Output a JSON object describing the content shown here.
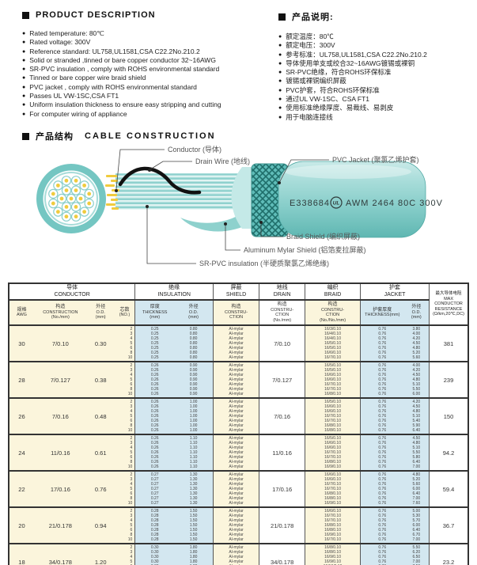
{
  "desc_en": {
    "title": "PRODUCT  DESCRIPTION",
    "items": [
      "Rated temperature: 80℃",
      "Rated voltage: 300V",
      "Reference standard: UL758,UL1581,CSA C22.2No.210.2",
      "Solid or stranded ,tinned or bare copper conductor 32~16AWG",
      "SR-PVC insulation , comply with ROHS environmental standard",
      "Tinned or bare copper wire braid shield",
      "PVC jacket , comply with ROHS environmental standard",
      "Passes UL VW-1SC,CSA FT1",
      "Uniform insulation thickness to ensure easy stripping and cutting",
      "For computer wiring of appliance"
    ]
  },
  "desc_cn": {
    "title": "产品说明:",
    "items": [
      "额定温度：80℃",
      "额定电压：300V",
      "参考标准：UL758,UL1581,CSA C22.2No.210.2",
      "导体使用单支或绞合32~16AWG镀锡或裸铜",
      "SR-PVC绝缘，符合ROHS环保标准",
      "镀锡或裸铜编织屏蔽",
      "PVC护套，符合ROHS环保标准",
      "通过UL VW-1SC、CSA FT1",
      "使用标准绝缘厚度、易裁线、易剥皮",
      "用于电脑连接线"
    ]
  },
  "construction": {
    "title_cn": "产品结构",
    "title_en": "CABLE  CONSTRUCTION",
    "labels": {
      "conductor": "Conductor (导体)",
      "drain": "Drain Wire (地线)",
      "jacket": "PVC Jacket (聚氯乙烯护套)",
      "braid": "Braid Shield (编织屏蔽)",
      "mylar": "Aluminum Mylar Shield (铝箔麦拉屏蔽)",
      "insulation": "SR-PVC insulation (半硬质聚氯乙烯绝缘)"
    },
    "print": {
      "cert": "E338684",
      "ul": "UL",
      "spec": "AWM 2464 80C 300V"
    }
  },
  "colors": {
    "jacket_teal": "#7FCAC6",
    "braid_dark": "#1F6E6A",
    "conductor_yellow": "#F0CB3E",
    "table_cream": "#FBF5DC",
    "table_blue": "#D3E7F0"
  },
  "table": {
    "groups": [
      {
        "cn": "导体",
        "en": "CONDUCTOR",
        "span": 4
      },
      {
        "cn": "绝缘",
        "en": "INSULATION",
        "span": 2
      },
      {
        "cn": "屏蔽",
        "en": "SHIELD",
        "span": 1
      },
      {
        "cn": "地线",
        "en": "DRAIN",
        "span": 1
      },
      {
        "cn": "编织",
        "en": "BRAID",
        "span": 1
      },
      {
        "cn": "护套",
        "en": "JACKET",
        "span": 2
      }
    ],
    "subheaders": [
      [
        "规格",
        "AWG"
      ],
      [
        "构造",
        "CONSTRUCTION",
        "(No./mm)"
      ],
      [
        "外径",
        "O.D.",
        "(mm)"
      ],
      [
        "芯数",
        "(NO.)"
      ],
      [
        "厚度",
        "THICKNESS",
        "(mm)"
      ],
      [
        "外径",
        "O.D.",
        "(mm)"
      ],
      [
        "构造",
        "CONSTRU-",
        "CTION"
      ],
      [
        "构造",
        "CONSTRU-",
        "CTION",
        "(No./mm)"
      ],
      [
        "构造",
        "CONSTRU-",
        "CTION",
        "(No./No./mm)"
      ],
      [
        "护套厚度",
        "THICKNESS(mm)"
      ],
      [
        "外径",
        "O.D.",
        "(mm)"
      ]
    ],
    "resistance_header": [
      "最大导体电阻",
      "MAX CONDUCTOR",
      "RESISTANCE",
      "(Ω/km,20℃,DC)"
    ],
    "rows": [
      {
        "awg": "30",
        "construction": "7/0.10",
        "od": "0.30",
        "cores": [
          "2",
          "3",
          "4",
          "5",
          "6",
          "8",
          "10"
        ],
        "ins_t": "0.25",
        "ins_od": "0.80",
        "shield": "Al-mylar",
        "drain": "7/0.10",
        "braid": [
          "16/3/0.10",
          "16/4/0.10",
          "16/4/0.10",
          "16/5/0.10",
          "16/5/0.10",
          "16/6/0.10",
          "16/7/0.10"
        ],
        "jkt_t": "0.76",
        "jkt_od": [
          "3.80",
          "4.00",
          "4.20",
          "4.50",
          "4.80",
          "5.20",
          "5.60"
        ],
        "res": "381"
      },
      {
        "awg": "28",
        "construction": "7/0.127",
        "od": "0.38",
        "cores": [
          "2",
          "3",
          "4",
          "5",
          "6",
          "8",
          "10"
        ],
        "ins_t": "0.26",
        "ins_od": "0.90",
        "shield": "Al-mylar",
        "drain": "7/0.127",
        "braid": [
          "16/5/0.10",
          "16/5/0.10",
          "16/6/0.10",
          "16/6/0.10",
          "16/7/0.10",
          "16/7/0.10",
          "16/8/0.10"
        ],
        "jkt_t": "0.76",
        "jkt_od": [
          "4.00",
          "4.20",
          "4.50",
          "4.80",
          "5.10",
          "5.50",
          "6.00"
        ],
        "res": "239"
      },
      {
        "awg": "26",
        "construction": "7/0.16",
        "od": "0.48",
        "cores": [
          "2",
          "3",
          "4",
          "5",
          "6",
          "8",
          "10"
        ],
        "ins_t": "0.26",
        "ins_od": "1.00",
        "shield": "Al-mylar",
        "drain": "7/0.16",
        "braid": [
          "16/5/0.10",
          "16/6/0.10",
          "16/6/0.10",
          "16/7/0.10",
          "16/7/0.10",
          "16/8/0.10",
          "16/8/0.10"
        ],
        "jkt_t": "0.76",
        "jkt_od": [
          "4.20",
          "4.50",
          "4.80",
          "5.10",
          "5.40",
          "5.90",
          "6.40"
        ],
        "res": "150"
      },
      {
        "awg": "24",
        "construction": "11/0.16",
        "od": "0.61",
        "cores": [
          "2",
          "3",
          "4",
          "5",
          "6",
          "8",
          "10"
        ],
        "ins_t": "0.26",
        "ins_od": "1.10",
        "shield": "Al-mylar",
        "drain": "11/0.16",
        "braid": [
          "16/5/0.10",
          "16/6/0.10",
          "16/6/0.10",
          "16/7/0.10",
          "16/7/0.10",
          "16/8/0.10",
          "16/9/0.10"
        ],
        "jkt_t": "0.76",
        "jkt_od": [
          "4.50",
          "4.80",
          "5.10",
          "5.50",
          "5.80",
          "6.40",
          "7.00"
        ],
        "res": "94.2"
      },
      {
        "awg": "22",
        "construction": "17/0.16",
        "od": "0.76",
        "cores": [
          "2",
          "3",
          "4",
          "5",
          "6",
          "8",
          "10"
        ],
        "ins_t": "0.27",
        "ins_od": "1.30",
        "shield": "Al-mylar",
        "drain": "17/0.16",
        "braid": [
          "16/6/0.10",
          "16/6/0.10",
          "16/7/0.10",
          "16/7/0.10",
          "16/8/0.10",
          "16/8/0.10",
          "16/9/0.10"
        ],
        "jkt_t": "0.76",
        "jkt_od": [
          "4.80",
          "5.20",
          "5.60",
          "6.00",
          "6.40",
          "7.00",
          "7.60"
        ],
        "res": "59.4"
      },
      {
        "awg": "20",
        "construction": "21/0.178",
        "od": "0.94",
        "cores": [
          "2",
          "3",
          "4",
          "5",
          "6",
          "8",
          "10"
        ],
        "ins_t": "0.28",
        "ins_od": "1.50",
        "shield": "Al-mylar",
        "drain": "21/0.178",
        "braid": [
          "16/6/0.10",
          "16/7/0.10",
          "16/7/0.10",
          "16/8/0.10",
          "16/8/0.10",
          "16/9/0.10",
          "16/7/0.10"
        ],
        "jkt_t": "0.76",
        "jkt_od": [
          "5.00",
          "5.30",
          "5.70",
          "6.00",
          "6.40",
          "6.70",
          "7.00"
        ],
        "res": "36.7"
      },
      {
        "awg": "18",
        "construction": "34/0.178",
        "od": "1.20",
        "cores": [
          "2",
          "3",
          "4",
          "5",
          "6",
          "8",
          "10"
        ],
        "ins_t": "0.30",
        "ins_od": "1.80",
        "shield": "Al-mylar",
        "drain": "34/0.178",
        "braid": [
          "16/8/0.10",
          "16/8/0.10",
          "16/9/0.10",
          "16/9/0.10",
          "16/10/0.10",
          "16/11/0.10",
          "16/12/0.10"
        ],
        "jkt_t": "0.76",
        "jkt_od": [
          "5.50",
          "6.20",
          "6.50",
          "7.00",
          "7.50",
          "8.30",
          "9.20"
        ],
        "res": "23.2"
      }
    ]
  }
}
